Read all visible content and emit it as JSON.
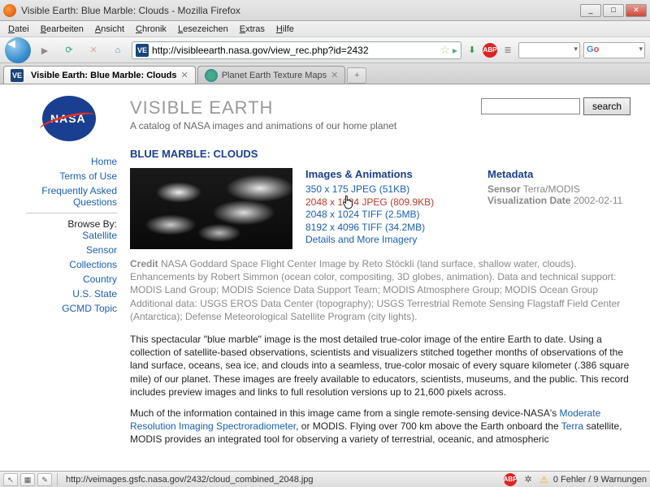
{
  "window": {
    "title": "Visible Earth: Blue Marble: Clouds - Mozilla Firefox"
  },
  "menu": {
    "items": [
      "Datei",
      "Bearbeiten",
      "Ansicht",
      "Chronik",
      "Lesezeichen",
      "Extras",
      "Hilfe"
    ]
  },
  "url": "http://visibleearth.nasa.gov/view_rec.php?id=2432",
  "tabs": [
    {
      "label": "Visible Earth: Blue Marble: Clouds",
      "active": true,
      "fav": "VE"
    },
    {
      "label": "Planet Earth Texture Maps",
      "active": false,
      "fav": "globe"
    }
  ],
  "header": {
    "title": "VISIBLE EARTH",
    "subtitle": "A catalog of NASA images and animations of our home planet",
    "search_label": "search"
  },
  "nav": {
    "links1": [
      "Home",
      "Terms of Use",
      "Frequently Asked Questions"
    ],
    "browse_label": "Browse By:",
    "links2": [
      "Satellite",
      "Sensor",
      "Collections",
      "Country",
      "U.S. State",
      "GCMD Topic"
    ]
  },
  "record": {
    "title": "BLUE MARBLE: CLOUDS",
    "images_heading": "Images & Animations",
    "image_links": [
      "350 x 175 JPEG (51KB)",
      "2048 x 1024 JPEG (809.9KB)",
      "2048 x 1024 TIFF (2.5MB)",
      "8192 x 4096 TIFF (34.2MB)",
      "Details and More Imagery"
    ],
    "hover_index": 1,
    "metadata_heading": "Metadata",
    "meta_sensor_label": "Sensor",
    "meta_sensor_value": "Terra/MODIS",
    "meta_date_label": "Visualization Date",
    "meta_date_value": "2002-02-11",
    "credit_label": "Credit",
    "credit_text": " NASA Goddard Space Flight Center Image by Reto Stöckli (land surface, shallow water, clouds). Enhancements by Robert Simmon (ocean color, compositing, 3D globes, animation). Data and technical support: MODIS Land Group; MODIS Science Data Support Team; MODIS Atmosphere Group; MODIS Ocean Group Additional data: USGS EROS Data Center (topography); USGS Terrestrial Remote Sensing Flagstaff Field Center (Antarctica); Defense Meteorological Satellite Program (city lights).",
    "desc_p1": "This spectacular \"blue marble\" image is the most detailed true-color image of the entire Earth to date. Using a collection of satellite-based observations, scientists and visualizers stitched together months of observations of the land surface, oceans, sea ice, and clouds into a seamless, true-color mosaic of every square kilometer (.386 square mile) of our planet. These images are freely available to educators, scientists, museums, and the public. This record includes preview images and links to full resolution versions up to 21,600 pixels across.",
    "desc_p2_a": "Much of the information contained in this image came from a single remote-sensing device-NASA's ",
    "desc_link1": "Moderate Resolution Imaging Spectroradiometer",
    "desc_p2_b": ", or MODIS. Flying over 700 km above the Earth onboard the ",
    "desc_link2": "Terra",
    "desc_p2_c": " satellite, MODIS provides an integrated tool for observing a variety of terrestrial, oceanic, and atmospheric"
  },
  "status": {
    "url": "http://veimages.gsfc.nasa.gov/2432/cloud_combined_2048.jpg",
    "abp": "ABP",
    "err_text": "0 Fehler / 9 Warnungen"
  }
}
